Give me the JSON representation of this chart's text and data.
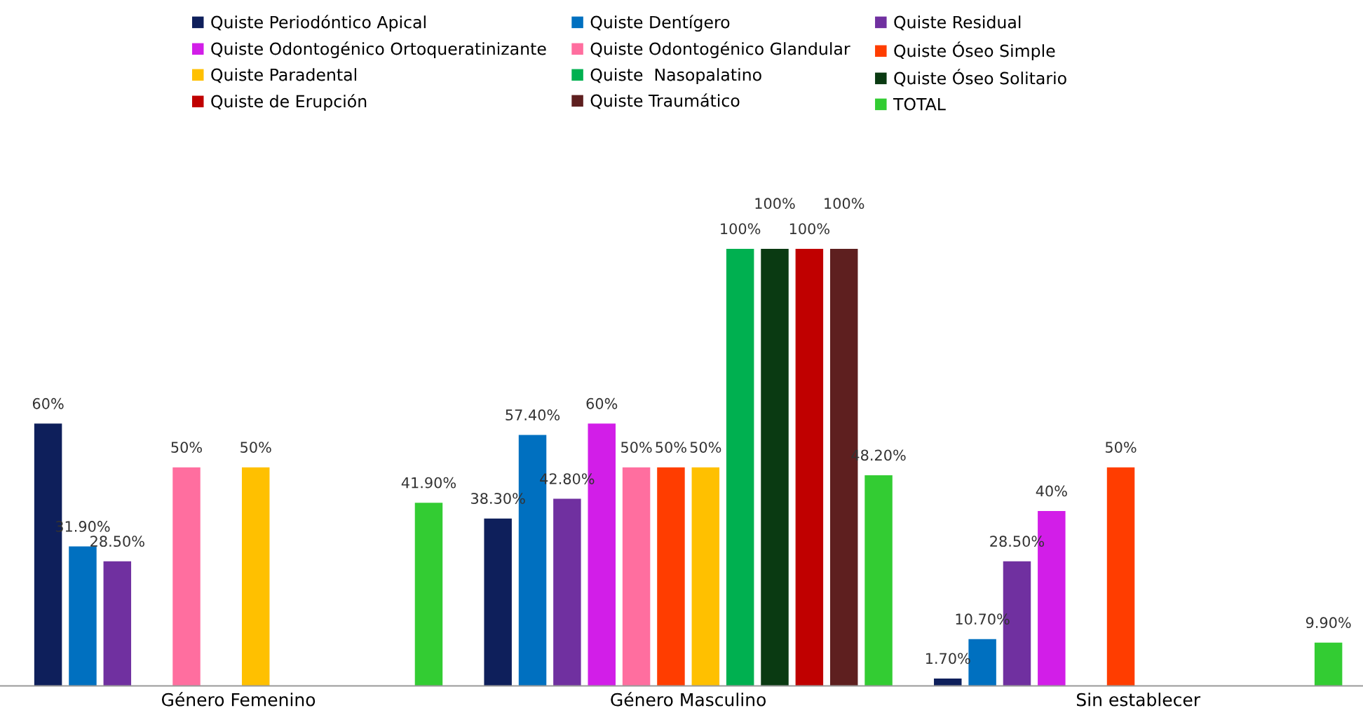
{
  "chart_data": {
    "type": "bar",
    "categories": [
      "Género Femenino",
      "Género Masculino",
      "Sin establecer"
    ],
    "series": [
      {
        "name": "Quiste Periodóntico Apical",
        "color": "#0e1f5b",
        "values": [
          60,
          38.3,
          1.7
        ],
        "value_labels": [
          "60%",
          "38.30%",
          "1.70%"
        ]
      },
      {
        "name": "Quiste Dentígero",
        "color": "#0070c0",
        "values": [
          31.9,
          57.4,
          10.7
        ],
        "value_labels": [
          "31.90%",
          "57.40%",
          "10.70%"
        ]
      },
      {
        "name": "Quiste Residual",
        "color": "#7030a0",
        "values": [
          28.5,
          42.8,
          28.5
        ],
        "value_labels": [
          "28.50%",
          "42.80%",
          "28.50%"
        ]
      },
      {
        "name": "Quiste Odontogénico Ortoqueratinizante",
        "color": "#d21ee8",
        "values": [
          null,
          60,
          40
        ],
        "value_labels": [
          null,
          "60%",
          "40%"
        ]
      },
      {
        "name": "Quiste Odontogénico Glandular",
        "color": "#ff6e9f",
        "values": [
          50,
          50,
          null
        ],
        "value_labels": [
          "50%",
          "50%",
          null
        ]
      },
      {
        "name": "Quiste Óseo Simple",
        "color": "#ff3d00",
        "values": [
          null,
          50,
          50
        ],
        "value_labels": [
          null,
          "50%",
          "50%"
        ]
      },
      {
        "name": "Quiste Paradental",
        "color": "#ffc000",
        "values": [
          50,
          50,
          null
        ],
        "value_labels": [
          "50%",
          "50%",
          null
        ]
      },
      {
        "name": "Quiste  Nasopalatino",
        "color": "#00b050",
        "values": [
          null,
          100,
          null
        ],
        "value_labels": [
          null,
          "100%",
          null
        ]
      },
      {
        "name": "Quiste Óseo Solitario",
        "color": "#0a3a12",
        "values": [
          null,
          100,
          null
        ],
        "value_labels": [
          null,
          "100%",
          null
        ]
      },
      {
        "name": "Quiste de Erupción",
        "color": "#c00000",
        "values": [
          null,
          100,
          null
        ],
        "value_labels": [
          null,
          "100%",
          null
        ]
      },
      {
        "name": "Quiste Traumático",
        "color": "#5e1f1f",
        "values": [
          null,
          100,
          null
        ],
        "value_labels": [
          null,
          "100%",
          null
        ]
      },
      {
        "name": "TOTAL",
        "color": "#33cc33",
        "values": [
          41.9,
          48.2,
          9.9
        ],
        "value_labels": [
          "41.90%",
          "48.20%",
          "9.90%"
        ]
      }
    ],
    "legend": "top",
    "grid": false
  }
}
